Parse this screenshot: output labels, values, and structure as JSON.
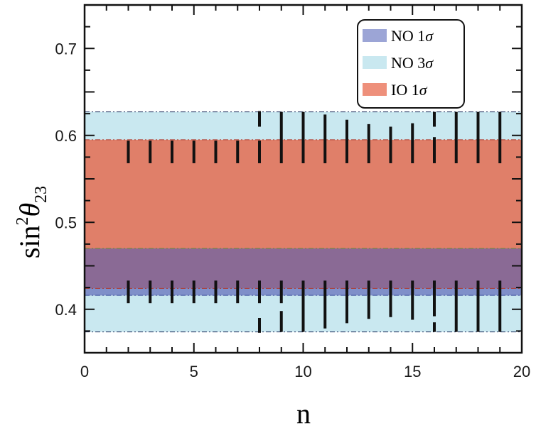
{
  "chart_data": {
    "type": "bar",
    "title": "",
    "xlabel": "n",
    "ylabel": "sin²θ₂₃",
    "ylabel_parts": {
      "base": "sin",
      "sup": "2",
      "symbol": "θ",
      "sub": "23"
    },
    "xlim": [
      0,
      20
    ],
    "ylim": [
      0.35,
      0.75
    ],
    "x_ticks": [
      0,
      5,
      10,
      15,
      20
    ],
    "x_tick_labels": [
      "0",
      "5",
      "10",
      "15",
      "20"
    ],
    "y_ticks": [
      0.4,
      0.5,
      0.6,
      0.7
    ],
    "y_tick_labels": [
      "0.4",
      "0.5",
      "0.6",
      "0.7"
    ],
    "grid": false,
    "legend_position": "top-right",
    "bands": [
      {
        "name": "NO 3σ",
        "label_base": "NO 3",
        "label_symbol": "σ",
        "y_range": [
          0.374,
          0.627
        ],
        "color": "#c9e8f0"
      },
      {
        "name": "IO 1σ",
        "label_base": "IO 1",
        "label_symbol": "σ",
        "y_range": [
          0.424,
          0.595
        ],
        "color": "#e07f69"
      },
      {
        "name": "NO 1σ",
        "label_base": "NO 1",
        "label_symbol": "σ",
        "y_range": [
          0.416,
          0.47
        ],
        "color": "#8a6a95"
      }
    ],
    "legend": [
      {
        "label_base": "NO 1",
        "label_symbol": "σ",
        "color": "#9ca5d6"
      },
      {
        "label_base": "NO 3",
        "label_symbol": "σ",
        "color": "#c9e8f0"
      },
      {
        "label_base": "IO 1",
        "label_symbol": "σ",
        "color": "#ee907b"
      }
    ],
    "series": [
      {
        "description_none": "",
        "segments": [
          {
            "n": 2,
            "ranges": [
              [
                0.407,
                0.433
              ],
              [
                0.568,
                0.594
              ]
            ]
          },
          {
            "n": 3,
            "ranges": [
              [
                0.407,
                0.433
              ],
              [
                0.568,
                0.594
              ]
            ]
          },
          {
            "n": 4,
            "ranges": [
              [
                0.407,
                0.433
              ],
              [
                0.568,
                0.594
              ]
            ]
          },
          {
            "n": 5,
            "ranges": [
              [
                0.407,
                0.433
              ],
              [
                0.568,
                0.594
              ]
            ]
          },
          {
            "n": 6,
            "ranges": [
              [
                0.407,
                0.433
              ],
              [
                0.568,
                0.594
              ]
            ]
          },
          {
            "n": 7,
            "ranges": [
              [
                0.407,
                0.433
              ],
              [
                0.568,
                0.594
              ]
            ]
          },
          {
            "n": 8,
            "ranges": [
              [
                0.407,
                0.433
              ],
              [
                0.568,
                0.594
              ],
              [
                0.61,
                0.628
              ],
              [
                0.373,
                0.39
              ]
            ]
          },
          {
            "n": 9,
            "ranges": [
              [
                0.374,
                0.398
              ],
              [
                0.407,
                0.433
              ],
              [
                0.568,
                0.627
              ]
            ]
          },
          {
            "n": 10,
            "ranges": [
              [
                0.374,
                0.433
              ],
              [
                0.568,
                0.627
              ]
            ]
          },
          {
            "n": 11,
            "ranges": [
              [
                0.378,
                0.433
              ],
              [
                0.568,
                0.624
              ]
            ]
          },
          {
            "n": 12,
            "ranges": [
              [
                0.384,
                0.433
              ],
              [
                0.568,
                0.618
              ]
            ]
          },
          {
            "n": 13,
            "ranges": [
              [
                0.389,
                0.433
              ],
              [
                0.568,
                0.613
              ]
            ]
          },
          {
            "n": 14,
            "ranges": [
              [
                0.391,
                0.433
              ],
              [
                0.568,
                0.61
              ]
            ]
          },
          {
            "n": 15,
            "ranges": [
              [
                0.388,
                0.433
              ],
              [
                0.568,
                0.614
              ]
            ]
          },
          {
            "n": 16,
            "ranges": [
              [
                0.374,
                0.385
              ],
              [
                0.392,
                0.433
              ],
              [
                0.568,
                0.598
              ],
              [
                0.61,
                0.627
              ]
            ]
          },
          {
            "n": 17,
            "ranges": [
              [
                0.374,
                0.433
              ],
              [
                0.568,
                0.627
              ]
            ]
          },
          {
            "n": 18,
            "ranges": [
              [
                0.374,
                0.433
              ],
              [
                0.568,
                0.627
              ]
            ]
          },
          {
            "n": 19,
            "ranges": [
              [
                0.374,
                0.433
              ],
              [
                0.568,
                0.627
              ]
            ]
          }
        ]
      }
    ]
  }
}
